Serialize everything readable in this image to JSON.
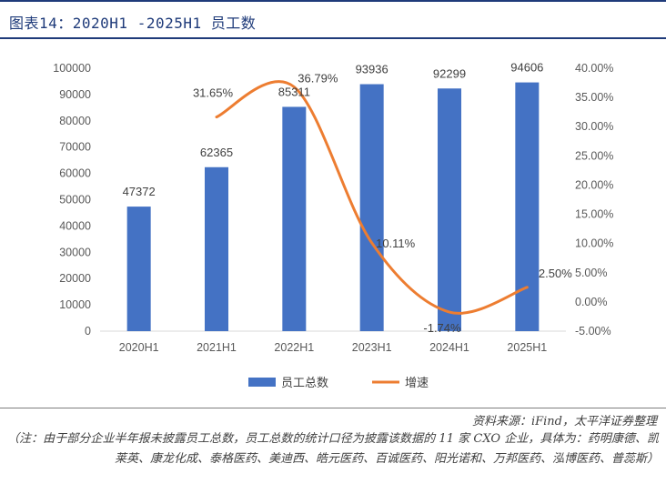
{
  "header": {
    "title": "图表14：2020H1 -2025H1 员工数"
  },
  "chart_data": {
    "type": "bar+line",
    "categories": [
      "2020H1",
      "2021H1",
      "2022H1",
      "2023H1",
      "2024H1",
      "2025H1"
    ],
    "series": [
      {
        "name": "员工总数",
        "type": "bar",
        "axis": "left",
        "color": "#4472c4",
        "values": [
          47372,
          62365,
          85311,
          93936,
          92299,
          94606
        ]
      },
      {
        "name": "增速",
        "type": "line",
        "axis": "right",
        "color": "#ed7d31",
        "values": [
          null,
          31.65,
          36.79,
          10.11,
          -1.74,
          2.5
        ]
      }
    ],
    "bar_labels": [
      "47372",
      "62365",
      "85311",
      "93936",
      "92299",
      "94606"
    ],
    "line_labels": [
      "",
      "31.65%",
      "36.79%",
      "10.11%",
      "-1.74%",
      "2.50%"
    ],
    "left_axis": {
      "ylim": [
        0,
        100000
      ],
      "ticks": [
        "0",
        "10000",
        "20000",
        "30000",
        "40000",
        "50000",
        "60000",
        "70000",
        "80000",
        "90000",
        "100000"
      ]
    },
    "right_axis": {
      "ylim": [
        -5,
        40
      ],
      "ticks": [
        "-5.00%",
        "0.00%",
        "5.00%",
        "10.00%",
        "15.00%",
        "20.00%",
        "25.00%",
        "30.00%",
        "35.00%",
        "40.00%"
      ]
    },
    "legend": {
      "position": "bottom",
      "items": [
        "员工总数",
        "增速"
      ]
    }
  },
  "footer": {
    "source": "资料来源：iFind，太平洋证券整理",
    "note": "（注：由于部分企业半年报未披露员工总数，员工总数的统计口径为披露该数据的 11 家 CXO 企业，具体为：药明康德、凯莱英、康龙化成、泰格医药、美迪西、皓元医药、百诚医药、阳光诺和、万邦医药、泓博医药、普蕊斯）"
  }
}
